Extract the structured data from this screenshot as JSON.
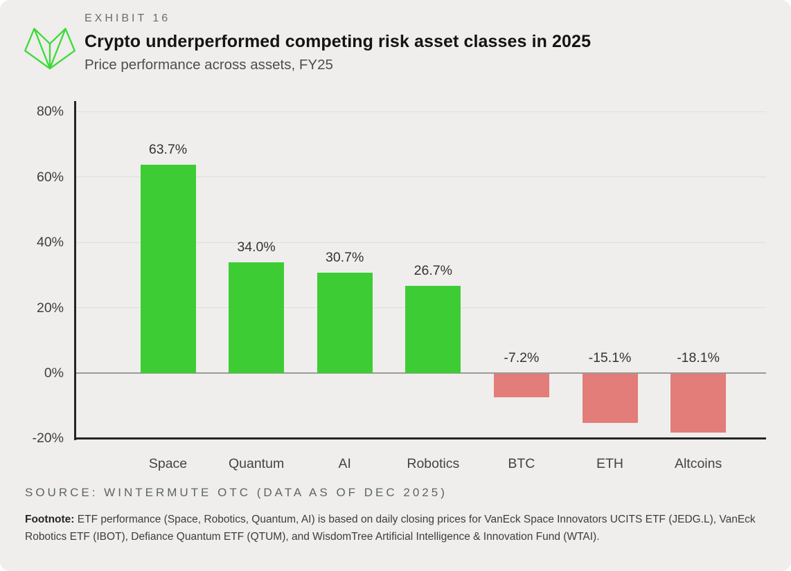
{
  "header": {
    "exhibit": "EXHIBIT 16",
    "title": "Crypto underperformed competing risk asset classes in 2025",
    "subtitle": "Price performance across assets, FY25"
  },
  "brand": {
    "logo_icon": "wintermute-logo",
    "logo_color": "#3fd93a"
  },
  "chart_data": {
    "type": "bar",
    "title": "Crypto underperformed competing risk asset classes in 2025",
    "subtitle": "Price performance across assets, FY25",
    "categories": [
      "Space",
      "Quantum",
      "AI",
      "Robotics",
      "BTC",
      "ETH",
      "Altcoins"
    ],
    "values": [
      63.7,
      34.0,
      30.7,
      26.7,
      -7.2,
      -15.1,
      -18.1
    ],
    "value_labels": [
      "63.7%",
      "34.0%",
      "30.7%",
      "26.7%",
      "-7.2%",
      "-15.1%",
      "-18.1%"
    ],
    "xlabel": "",
    "ylabel": "",
    "ylim": [
      -20,
      80
    ],
    "yticks": [
      80,
      60,
      40,
      20,
      0,
      -20
    ],
    "ytick_labels": [
      "80%",
      "60%",
      "40%",
      "20%",
      "0%",
      "-20%"
    ],
    "grid": true,
    "legend": false,
    "positive_color": "#3ecc35",
    "negative_color": "#e27d7a",
    "gridline_color": "#dfdedc",
    "zeroline_color": "#9a9a98",
    "axis_color": "#212524",
    "background_color": "#efeeec"
  },
  "footer": {
    "source": "SOURCE: WINTERMUTE OTC (DATA AS OF DEC 2025)",
    "footnote_label": "Footnote:",
    "footnote_text": " ETF performance (Space, Robotics, Quantum, AI) is based on daily closing prices for VanEck Space Innovators UCITS ETF (JEDG.L), VanEck Robotics ETF (IBOT), Defiance Quantum ETF (QTUM), and WisdomTree Artificial Intelligence & Innovation Fund (WTAI)."
  }
}
